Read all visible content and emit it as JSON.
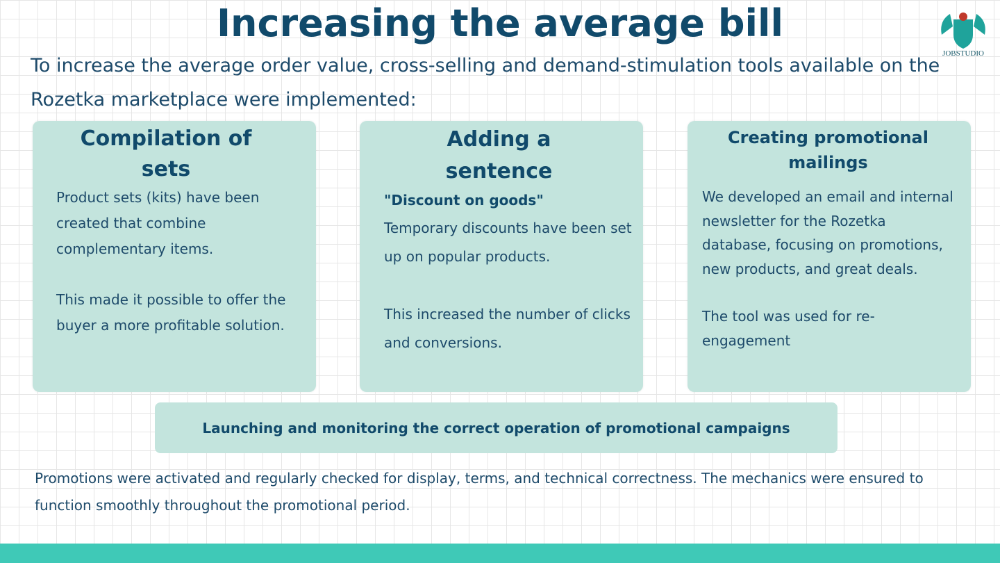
{
  "title": "Increasing the average bill",
  "intro": "To increase the average order value, cross-selling and demand-stimulation tools available on the Rozetka marketplace were implemented:",
  "logo": {
    "name": "JOBSTUDIO"
  },
  "cards": [
    {
      "title": "Compilation of sets",
      "paragraphs": [
        "Product sets (kits) have been created that combine complementary items.",
        "This made it possible to offer the buyer a more profitable solution."
      ]
    },
    {
      "title": "Adding a sentence",
      "subtitle": "\"Discount on goods\"",
      "paragraphs": [
        "Temporary discounts have been set up on popular products.",
        "This increased the number of clicks and conversions."
      ]
    },
    {
      "title": "Creating promotional mailings",
      "paragraphs": [
        "We developed an email and internal newsletter for the Rozetka database, focusing on promotions, new products, and great deals.",
        "The tool was used for re-engagement"
      ]
    }
  ],
  "banner": "Launching and monitoring the correct operation of promotional campaigns",
  "footer": "Promotions were activated and regularly checked for display, terms, and technical correctness. The mechanics were ensured to function smoothly throughout the promotional period."
}
